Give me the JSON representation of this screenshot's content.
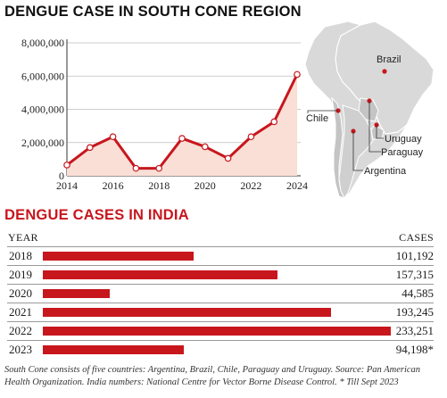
{
  "chart_data": [
    {
      "type": "area",
      "title": "DENGUE CASE IN SOUTH CONE REGION",
      "x": [
        2014,
        2015,
        2016,
        2017,
        2018,
        2019,
        2020,
        2021,
        2022,
        2023,
        2024
      ],
      "series": [
        {
          "values": [
            650000,
            1700000,
            2350000,
            450000,
            450000,
            2250000,
            1750000,
            1050000,
            2350000,
            3250000,
            6100000
          ]
        }
      ],
      "xticks": [
        "2014",
        "2016",
        "2018",
        "2020",
        "2022",
        "2024"
      ],
      "yticks": [
        "0",
        "2,000,000",
        "4,000,000",
        "6,000,000",
        "8,000,000"
      ],
      "ylim": [
        0,
        8000000
      ],
      "xlim": [
        2014,
        2024
      ],
      "colors": {
        "line": "#c8161d",
        "fill": "#f9dfd6"
      }
    },
    {
      "type": "bar",
      "title": "DENGUE CASES IN INDIA",
      "col_left": "YEAR",
      "col_right": "CASES",
      "categories": [
        "2018",
        "2019",
        "2020",
        "2021",
        "2022",
        "2023"
      ],
      "values": [
        101192,
        157315,
        44585,
        193245,
        233251,
        94198
      ],
      "labels": [
        "101,192",
        "157,315",
        "44,585",
        "193,245",
        "233,251",
        "94,198*"
      ],
      "colors": {
        "bar": "#c8161d"
      }
    }
  ],
  "map": {
    "countries": [
      "Brazil",
      "Chile",
      "Paraguay",
      "Uruguay",
      "Argentina"
    ],
    "colors": {
      "land": "#d9d9d9",
      "border": "#ffffff",
      "highlight": "#b9b9b9",
      "marker": "#c8161d"
    }
  },
  "footnote": "South Cone consists of five countries: Argentina, Brazil, Chile, Paraguay and Uruguay. Source: Pan American Health Organization. India numbers: National Centre for Vector Borne Disease Control. * Till Sept 2023"
}
